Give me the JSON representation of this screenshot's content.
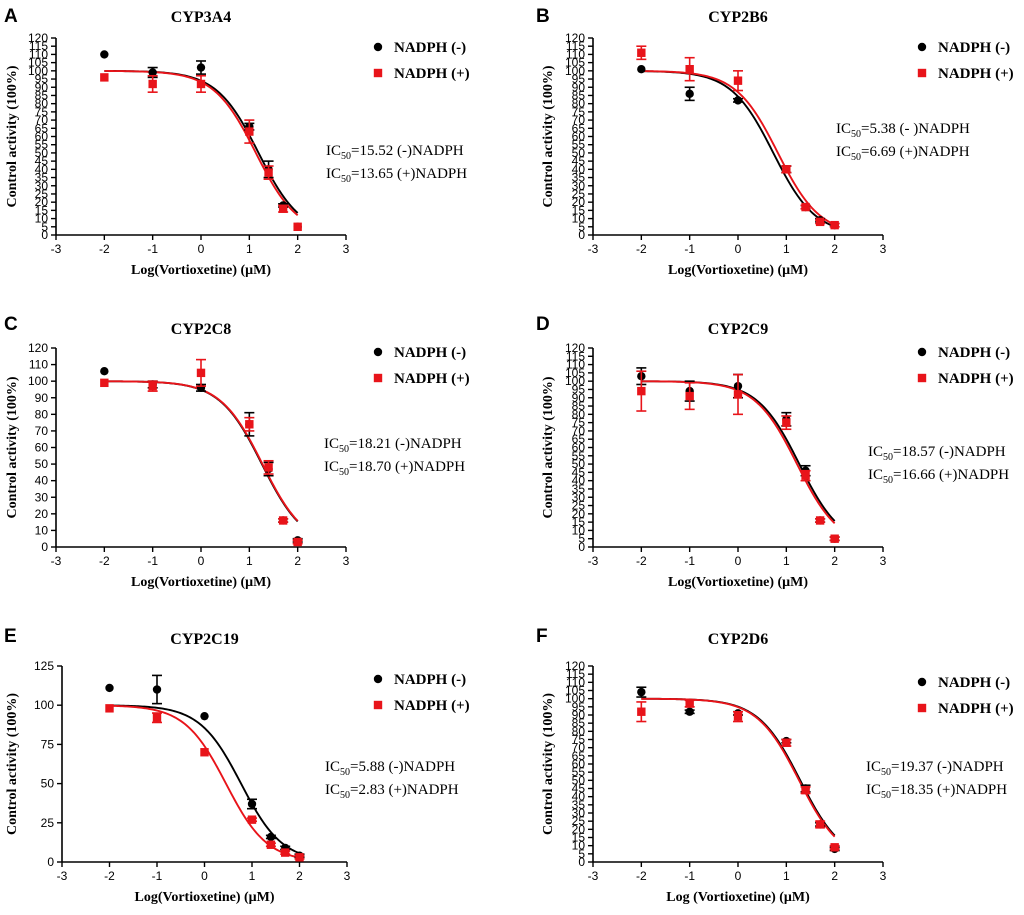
{
  "colors": {
    "minus": "#000000",
    "plus": "#e8141a"
  },
  "chart_data": [
    {
      "type": "scatter",
      "panel": "A",
      "title": "CYP3A4",
      "xlabel": "Log(Vortioxetine) (μM)",
      "ylabel": "Control activity (100%)",
      "xlim": [
        -3,
        3
      ],
      "ylim": [
        0,
        120
      ],
      "xticks": [
        -3,
        -2,
        -1,
        0,
        1,
        2,
        3
      ],
      "yticks": [
        0,
        5,
        10,
        15,
        20,
        25,
        30,
        35,
        40,
        45,
        50,
        55,
        60,
        65,
        70,
        75,
        80,
        85,
        90,
        95,
        100,
        105,
        110,
        115,
        120
      ],
      "series": [
        {
          "name": "NADPH (-)",
          "marker": "circle",
          "x": [
            -2,
            -1,
            0,
            1,
            1.398,
            1.699,
            2
          ],
          "y": [
            110,
            99,
            102,
            66,
            40,
            18,
            5
          ],
          "err": [
            0,
            3,
            4,
            2,
            5,
            1,
            0
          ],
          "ic50": 15.52
        },
        {
          "name": "NADPH (+)",
          "marker": "square",
          "x": [
            -2,
            -1,
            0,
            1,
            1.398,
            1.699,
            2
          ],
          "y": [
            96,
            92,
            92,
            63,
            38,
            16,
            5
          ],
          "err": [
            0,
            5,
            5,
            7,
            4,
            2,
            0
          ],
          "ic50": 13.65
        }
      ],
      "annotations": [
        {
          "pre": "IC",
          "sub": "50",
          "post": "=15.52 (-)NADPH"
        },
        {
          "pre": "IC",
          "sub": "50",
          "post": "=13.65 (+)NADPH"
        }
      ]
    },
    {
      "type": "scatter",
      "panel": "B",
      "title": "CYP2B6",
      "xlabel": "Log(Vortioxetine) (μM)",
      "ylabel": "Control activity (100%)",
      "xlim": [
        -3,
        3
      ],
      "ylim": [
        0,
        120
      ],
      "xticks": [
        -3,
        -2,
        -1,
        0,
        1,
        2,
        3
      ],
      "yticks": [
        0,
        5,
        10,
        15,
        20,
        25,
        30,
        35,
        40,
        45,
        50,
        55,
        60,
        65,
        70,
        75,
        80,
        85,
        90,
        95,
        100,
        105,
        110,
        115,
        120
      ],
      "series": [
        {
          "name": "NADPH (-)",
          "marker": "circle",
          "x": [
            -2,
            -1,
            0,
            1,
            1.398,
            1.699,
            2
          ],
          "y": [
            101,
            86,
            82,
            40,
            17,
            9,
            6
          ],
          "err": [
            0,
            4,
            1,
            2,
            1,
            1,
            0
          ],
          "ic50": 5.38
        },
        {
          "name": "NADPH (+)",
          "marker": "square",
          "x": [
            -2,
            -1,
            0,
            1,
            1.398,
            1.699,
            2
          ],
          "y": [
            111,
            101,
            94,
            40,
            17,
            8,
            6
          ],
          "err": [
            4,
            7,
            6,
            2,
            1,
            1,
            1
          ],
          "ic50": 6.69
        }
      ],
      "annotations": [
        {
          "pre": "IC",
          "sub": "50",
          "post": "=5.38 (- )NADPH"
        },
        {
          "pre": "IC",
          "sub": "50",
          "post": "=6.69 (+)NADPH"
        }
      ]
    },
    {
      "type": "scatter",
      "panel": "C",
      "title": "CYP2C8",
      "xlabel": "Log(Vortioxetine) (μM)",
      "ylabel": "Control activity (100%)",
      "xlim": [
        -3,
        3
      ],
      "ylim": [
        0,
        120
      ],
      "xticks": [
        -3,
        -2,
        -1,
        0,
        1,
        2,
        3
      ],
      "yticks": [
        0,
        10,
        20,
        30,
        40,
        50,
        60,
        70,
        80,
        90,
        100,
        110,
        120
      ],
      "series": [
        {
          "name": "NADPH (-)",
          "marker": "circle",
          "x": [
            -2,
            -1,
            0,
            1,
            1.398,
            1.699,
            2
          ],
          "y": [
            106,
            98,
            96,
            74,
            47,
            16,
            4
          ],
          "err": [
            0,
            2,
            2,
            7,
            4,
            1,
            1
          ],
          "ic50": 18.21
        },
        {
          "name": "NADPH (+)",
          "marker": "square",
          "x": [
            -2,
            -1,
            0,
            1,
            1.398,
            1.699,
            2
          ],
          "y": [
            99,
            97,
            105,
            74,
            48,
            16,
            3
          ],
          "err": [
            0,
            3,
            8,
            4,
            4,
            1,
            1
          ],
          "ic50": 18.7
        }
      ],
      "annotations": [
        {
          "pre": "IC",
          "sub": "50",
          "post": "=18.21 (-)NADPH"
        },
        {
          "pre": "IC",
          "sub": "50",
          "post": "=18.70 (+)NADPH"
        }
      ]
    },
    {
      "type": "scatter",
      "panel": "D",
      "title": "CYP2C9",
      "xlabel": "Log(Vortioxetine) (μM)",
      "ylabel": "Control activity (100%)",
      "xlim": [
        -3,
        3
      ],
      "ylim": [
        0,
        120
      ],
      "xticks": [
        -3,
        -2,
        -1,
        0,
        1,
        2,
        3
      ],
      "yticks": [
        0,
        5,
        10,
        15,
        20,
        25,
        30,
        35,
        40,
        45,
        50,
        55,
        60,
        65,
        70,
        75,
        80,
        85,
        90,
        95,
        100,
        105,
        110,
        115,
        120
      ],
      "series": [
        {
          "name": "NADPH (-)",
          "marker": "circle",
          "x": [
            -2,
            -1,
            0,
            1,
            1.398,
            1.699,
            2
          ],
          "y": [
            103,
            94,
            97,
            77,
            46,
            16,
            5
          ],
          "err": [
            5,
            6,
            7,
            4,
            3,
            1,
            1
          ],
          "ic50": 18.57
        },
        {
          "name": "NADPH (+)",
          "marker": "square",
          "x": [
            -2,
            -1,
            0,
            1,
            1.398,
            1.699,
            2
          ],
          "y": [
            94,
            91,
            92,
            75,
            43,
            16,
            5
          ],
          "err": [
            12,
            8,
            12,
            4,
            3,
            1,
            1
          ],
          "ic50": 16.66
        }
      ],
      "annotations": [
        {
          "pre": "IC",
          "sub": "50",
          "post": "=18.57 (-)NADPH"
        },
        {
          "pre": "IC",
          "sub": "50",
          "post": "=16.66 (+)NADPH"
        }
      ]
    },
    {
      "type": "scatter",
      "panel": "E",
      "title": "CYP2C19",
      "xlabel": "Log(Vortioxetine) (μM)",
      "ylabel": "Control activity (100%)",
      "xlim": [
        -3,
        3
      ],
      "ylim": [
        0,
        125
      ],
      "xticks": [
        -3,
        -2,
        -1,
        0,
        1,
        2,
        3
      ],
      "yticks": [
        0,
        25,
        50,
        75,
        100,
        125
      ],
      "series": [
        {
          "name": "NADPH (-)",
          "marker": "circle",
          "x": [
            -2,
            -1,
            0,
            1,
            1.398,
            1.699,
            2
          ],
          "y": [
            111,
            110,
            93,
            37,
            16,
            9,
            4
          ],
          "err": [
            0,
            9,
            0,
            3,
            1,
            1,
            1
          ],
          "ic50": 5.88
        },
        {
          "name": "NADPH (+)",
          "marker": "square",
          "x": [
            -2,
            -1,
            0,
            1,
            1.398,
            1.699,
            2
          ],
          "y": [
            98,
            92,
            70,
            27,
            11,
            6,
            3
          ],
          "err": [
            0,
            3,
            0,
            1,
            1,
            1,
            1
          ],
          "ic50": 2.83
        }
      ],
      "annotations": [
        {
          "pre": "IC",
          "sub": "50",
          "post": "=5.88 (-)NADPH"
        },
        {
          "pre": "IC",
          "sub": "50",
          "post": "=2.83 (+)NADPH"
        }
      ]
    },
    {
      "type": "scatter",
      "panel": "F",
      "title": "CYP2D6",
      "xlabel": "Log (Vortioxetine) (μM)",
      "ylabel": "Control activity (100%)",
      "xlim": [
        -3,
        3
      ],
      "ylim": [
        0,
        120
      ],
      "xticks": [
        -3,
        -2,
        -1,
        0,
        1,
        2,
        3
      ],
      "yticks": [
        0,
        5,
        10,
        15,
        20,
        25,
        30,
        35,
        40,
        45,
        50,
        55,
        60,
        65,
        70,
        75,
        80,
        85,
        90,
        95,
        100,
        105,
        110,
        115,
        120
      ],
      "series": [
        {
          "name": "NADPH (-)",
          "marker": "circle",
          "x": [
            -2,
            -1,
            0,
            1,
            1.398,
            1.699,
            2
          ],
          "y": [
            104,
            92,
            91,
            74,
            45,
            23,
            8
          ],
          "err": [
            3,
            1,
            1,
            1,
            2,
            1,
            1
          ],
          "ic50": 19.37
        },
        {
          "name": "NADPH (+)",
          "marker": "square",
          "x": [
            -2,
            -1,
            0,
            1,
            1.398,
            1.699,
            2
          ],
          "y": [
            92,
            97,
            89,
            73,
            44,
            23,
            9
          ],
          "err": [
            6,
            2,
            3,
            2,
            2,
            2,
            1
          ],
          "ic50": 18.35
        }
      ],
      "annotations": [
        {
          "pre": "IC",
          "sub": "50",
          "post": "=19.37 (-)NADPH"
        },
        {
          "pre": "IC",
          "sub": "50",
          "post": "=18.35 (+)NADPH"
        }
      ]
    }
  ]
}
